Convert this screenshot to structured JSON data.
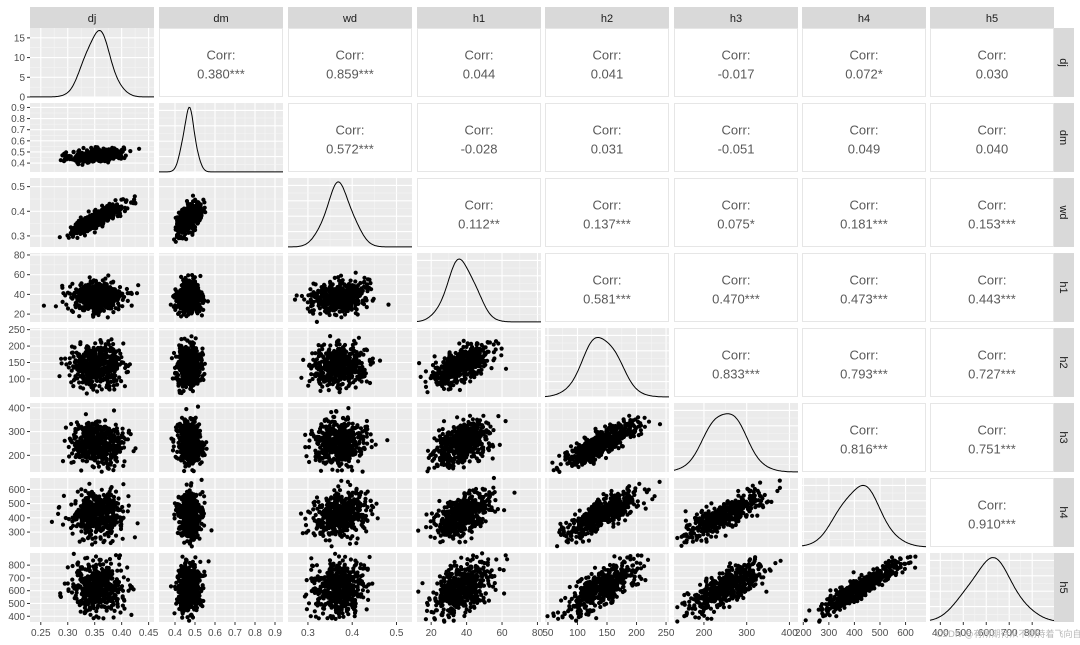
{
  "variables": [
    "dj",
    "dm",
    "wd",
    "h1",
    "h2",
    "h3",
    "h4",
    "h5"
  ],
  "corr_label": "Corr:",
  "chart_data": {
    "type": "scatter",
    "layout": "pairs-matrix",
    "diagonal": "density",
    "upper": "correlation-text",
    "lower": "scatter",
    "grid": true,
    "strip_labels": [
      "dj",
      "dm",
      "wd",
      "h1",
      "h2",
      "h3",
      "h4",
      "h5"
    ],
    "correlations": [
      {
        "row": "dj",
        "col": "dm",
        "text": "0.380***"
      },
      {
        "row": "dj",
        "col": "wd",
        "text": "0.859***"
      },
      {
        "row": "dj",
        "col": "h1",
        "text": "0.044"
      },
      {
        "row": "dj",
        "col": "h2",
        "text": "0.041"
      },
      {
        "row": "dj",
        "col": "h3",
        "text": "-0.017"
      },
      {
        "row": "dj",
        "col": "h4",
        "text": "0.072*"
      },
      {
        "row": "dj",
        "col": "h5",
        "text": "0.030"
      },
      {
        "row": "dm",
        "col": "wd",
        "text": "0.572***"
      },
      {
        "row": "dm",
        "col": "h1",
        "text": "-0.028"
      },
      {
        "row": "dm",
        "col": "h2",
        "text": "0.031"
      },
      {
        "row": "dm",
        "col": "h3",
        "text": "-0.051"
      },
      {
        "row": "dm",
        "col": "h4",
        "text": "0.049"
      },
      {
        "row": "dm",
        "col": "h5",
        "text": "0.040"
      },
      {
        "row": "wd",
        "col": "h1",
        "text": "0.112**"
      },
      {
        "row": "wd",
        "col": "h2",
        "text": "0.137***"
      },
      {
        "row": "wd",
        "col": "h3",
        "text": "0.075*"
      },
      {
        "row": "wd",
        "col": "h4",
        "text": "0.181***"
      },
      {
        "row": "wd",
        "col": "h5",
        "text": "0.153***"
      },
      {
        "row": "h1",
        "col": "h2",
        "text": "0.581***"
      },
      {
        "row": "h1",
        "col": "h3",
        "text": "0.470***"
      },
      {
        "row": "h1",
        "col": "h4",
        "text": "0.473***"
      },
      {
        "row": "h1",
        "col": "h5",
        "text": "0.443***"
      },
      {
        "row": "h2",
        "col": "h3",
        "text": "0.833***"
      },
      {
        "row": "h2",
        "col": "h4",
        "text": "0.793***"
      },
      {
        "row": "h2",
        "col": "h5",
        "text": "0.727***"
      },
      {
        "row": "h3",
        "col": "h4",
        "text": "0.816***"
      },
      {
        "row": "h3",
        "col": "h5",
        "text": "0.751***"
      },
      {
        "row": "h4",
        "col": "h5",
        "text": "0.910***"
      }
    ],
    "axes": {
      "dj": {
        "range": [
          0.23,
          0.46
        ],
        "ticks": [
          0.25,
          0.3,
          0.35,
          0.4,
          0.45
        ],
        "tick_labels": [
          "0.25",
          "0.30",
          "0.35",
          "0.40",
          "0.45"
        ]
      },
      "dm": {
        "range": [
          0.32,
          0.94
        ],
        "ticks": [
          0.4,
          0.5,
          0.6,
          0.7,
          0.8,
          0.9
        ],
        "tick_labels": [
          "0.4",
          "0.5",
          "0.6",
          "0.7",
          "0.8",
          "0.9"
        ]
      },
      "wd": {
        "range": [
          0.255,
          0.535
        ],
        "ticks": [
          0.3,
          0.4,
          0.5
        ],
        "tick_labels": [
          "0.3",
          "0.4",
          "0.5"
        ]
      },
      "h1": {
        "range": [
          12,
          82
        ],
        "ticks": [
          20,
          40,
          60,
          80
        ],
        "tick_labels": [
          "20",
          "40",
          "60",
          "80"
        ]
      },
      "h2": {
        "range": [
          45,
          255
        ],
        "ticks": [
          50,
          100,
          150,
          200,
          250
        ],
        "tick_labels": [
          "50",
          "100",
          "150",
          "200",
          "250"
        ]
      },
      "h3": {
        "range": [
          130,
          420
        ],
        "ticks": [
          200,
          300,
          400
        ],
        "tick_labels": [
          "200",
          "300",
          "400"
        ]
      },
      "h4": {
        "range": [
          195,
          680
        ],
        "ticks": [
          200,
          300,
          400,
          500,
          600
        ],
        "tick_labels": [
          "200",
          "300",
          "400",
          "500",
          "600"
        ]
      },
      "h5": {
        "range": [
          355,
          895
        ],
        "ticks": [
          400,
          500,
          600,
          700,
          800
        ],
        "tick_labels": [
          "400",
          "500",
          "600",
          "700",
          "800"
        ]
      }
    },
    "diag_y_axis": {
      "ticks": [
        0,
        5,
        10,
        15
      ],
      "tick_labels": [
        "0",
        "5",
        "10",
        "15"
      ],
      "range": [
        0,
        17.5
      ]
    },
    "y_axes": {
      "dm": {
        "ticks": [
          0.4,
          0.5,
          0.6,
          0.7,
          0.8,
          0.9
        ],
        "tick_labels": [
          "0.4",
          "0.5",
          "0.6",
          "0.7",
          "0.8",
          "0.9"
        ]
      },
      "wd": {
        "ticks": [
          0.3,
          0.4,
          0.5
        ],
        "tick_labels": [
          "0.3",
          "0.4",
          "0.5"
        ]
      },
      "h1": {
        "ticks": [
          20,
          40,
          60,
          80
        ],
        "tick_labels": [
          "20",
          "40",
          "60",
          "80"
        ]
      },
      "h2": {
        "ticks": [
          100,
          150,
          200,
          250
        ],
        "tick_labels": [
          "100",
          "150",
          "200",
          "250"
        ]
      },
      "h3": {
        "ticks": [
          200,
          300,
          400
        ],
        "tick_labels": [
          "200",
          "300",
          "400"
        ]
      },
      "h4": {
        "ticks": [
          300,
          400,
          500,
          600
        ],
        "tick_labels": [
          "300",
          "400",
          "500",
          "600"
        ]
      },
      "h5": {
        "ticks": [
          400,
          500,
          600,
          700,
          800
        ],
        "tick_labels": [
          "400",
          "500",
          "600",
          "700",
          "800"
        ]
      }
    },
    "distributions": {
      "dj": {
        "mean": 0.355,
        "sd": 0.024
      },
      "dm": {
        "mean": 0.47,
        "sd": 0.03
      },
      "wd": {
        "mean": 0.37,
        "sd": 0.03
      },
      "h1": {
        "mean": 37,
        "sd": 8
      },
      "h2": {
        "mean": 140,
        "sd": 30
      },
      "h3": {
        "mean": 250,
        "sd": 45
      },
      "h4": {
        "mean": 420,
        "sd": 80
      },
      "h5": {
        "mean": 620,
        "sd": 100
      }
    },
    "corr_values": {
      "dj-dm": 0.38,
      "dj-wd": 0.859,
      "dj-h1": 0.044,
      "dj-h2": 0.041,
      "dj-h3": -0.017,
      "dj-h4": 0.072,
      "dj-h5": 0.03,
      "dm-wd": 0.572,
      "dm-h1": -0.028,
      "dm-h2": 0.031,
      "dm-h3": -0.051,
      "dm-h4": 0.049,
      "dm-h5": 0.04,
      "wd-h1": 0.112,
      "wd-h2": 0.137,
      "wd-h3": 0.075,
      "wd-h4": 0.181,
      "wd-h5": 0.153,
      "h1-h2": 0.581,
      "h1-h3": 0.47,
      "h1-h4": 0.473,
      "h1-h5": 0.443,
      "h2-h3": 0.833,
      "h2-h4": 0.793,
      "h2-h5": 0.727,
      "h3-h4": 0.816,
      "h3-h5": 0.751,
      "h4-h5": 0.91
    },
    "points_per_panel": 500
  },
  "watermark": "CSDN @有所期待从不期待着飞向自我"
}
